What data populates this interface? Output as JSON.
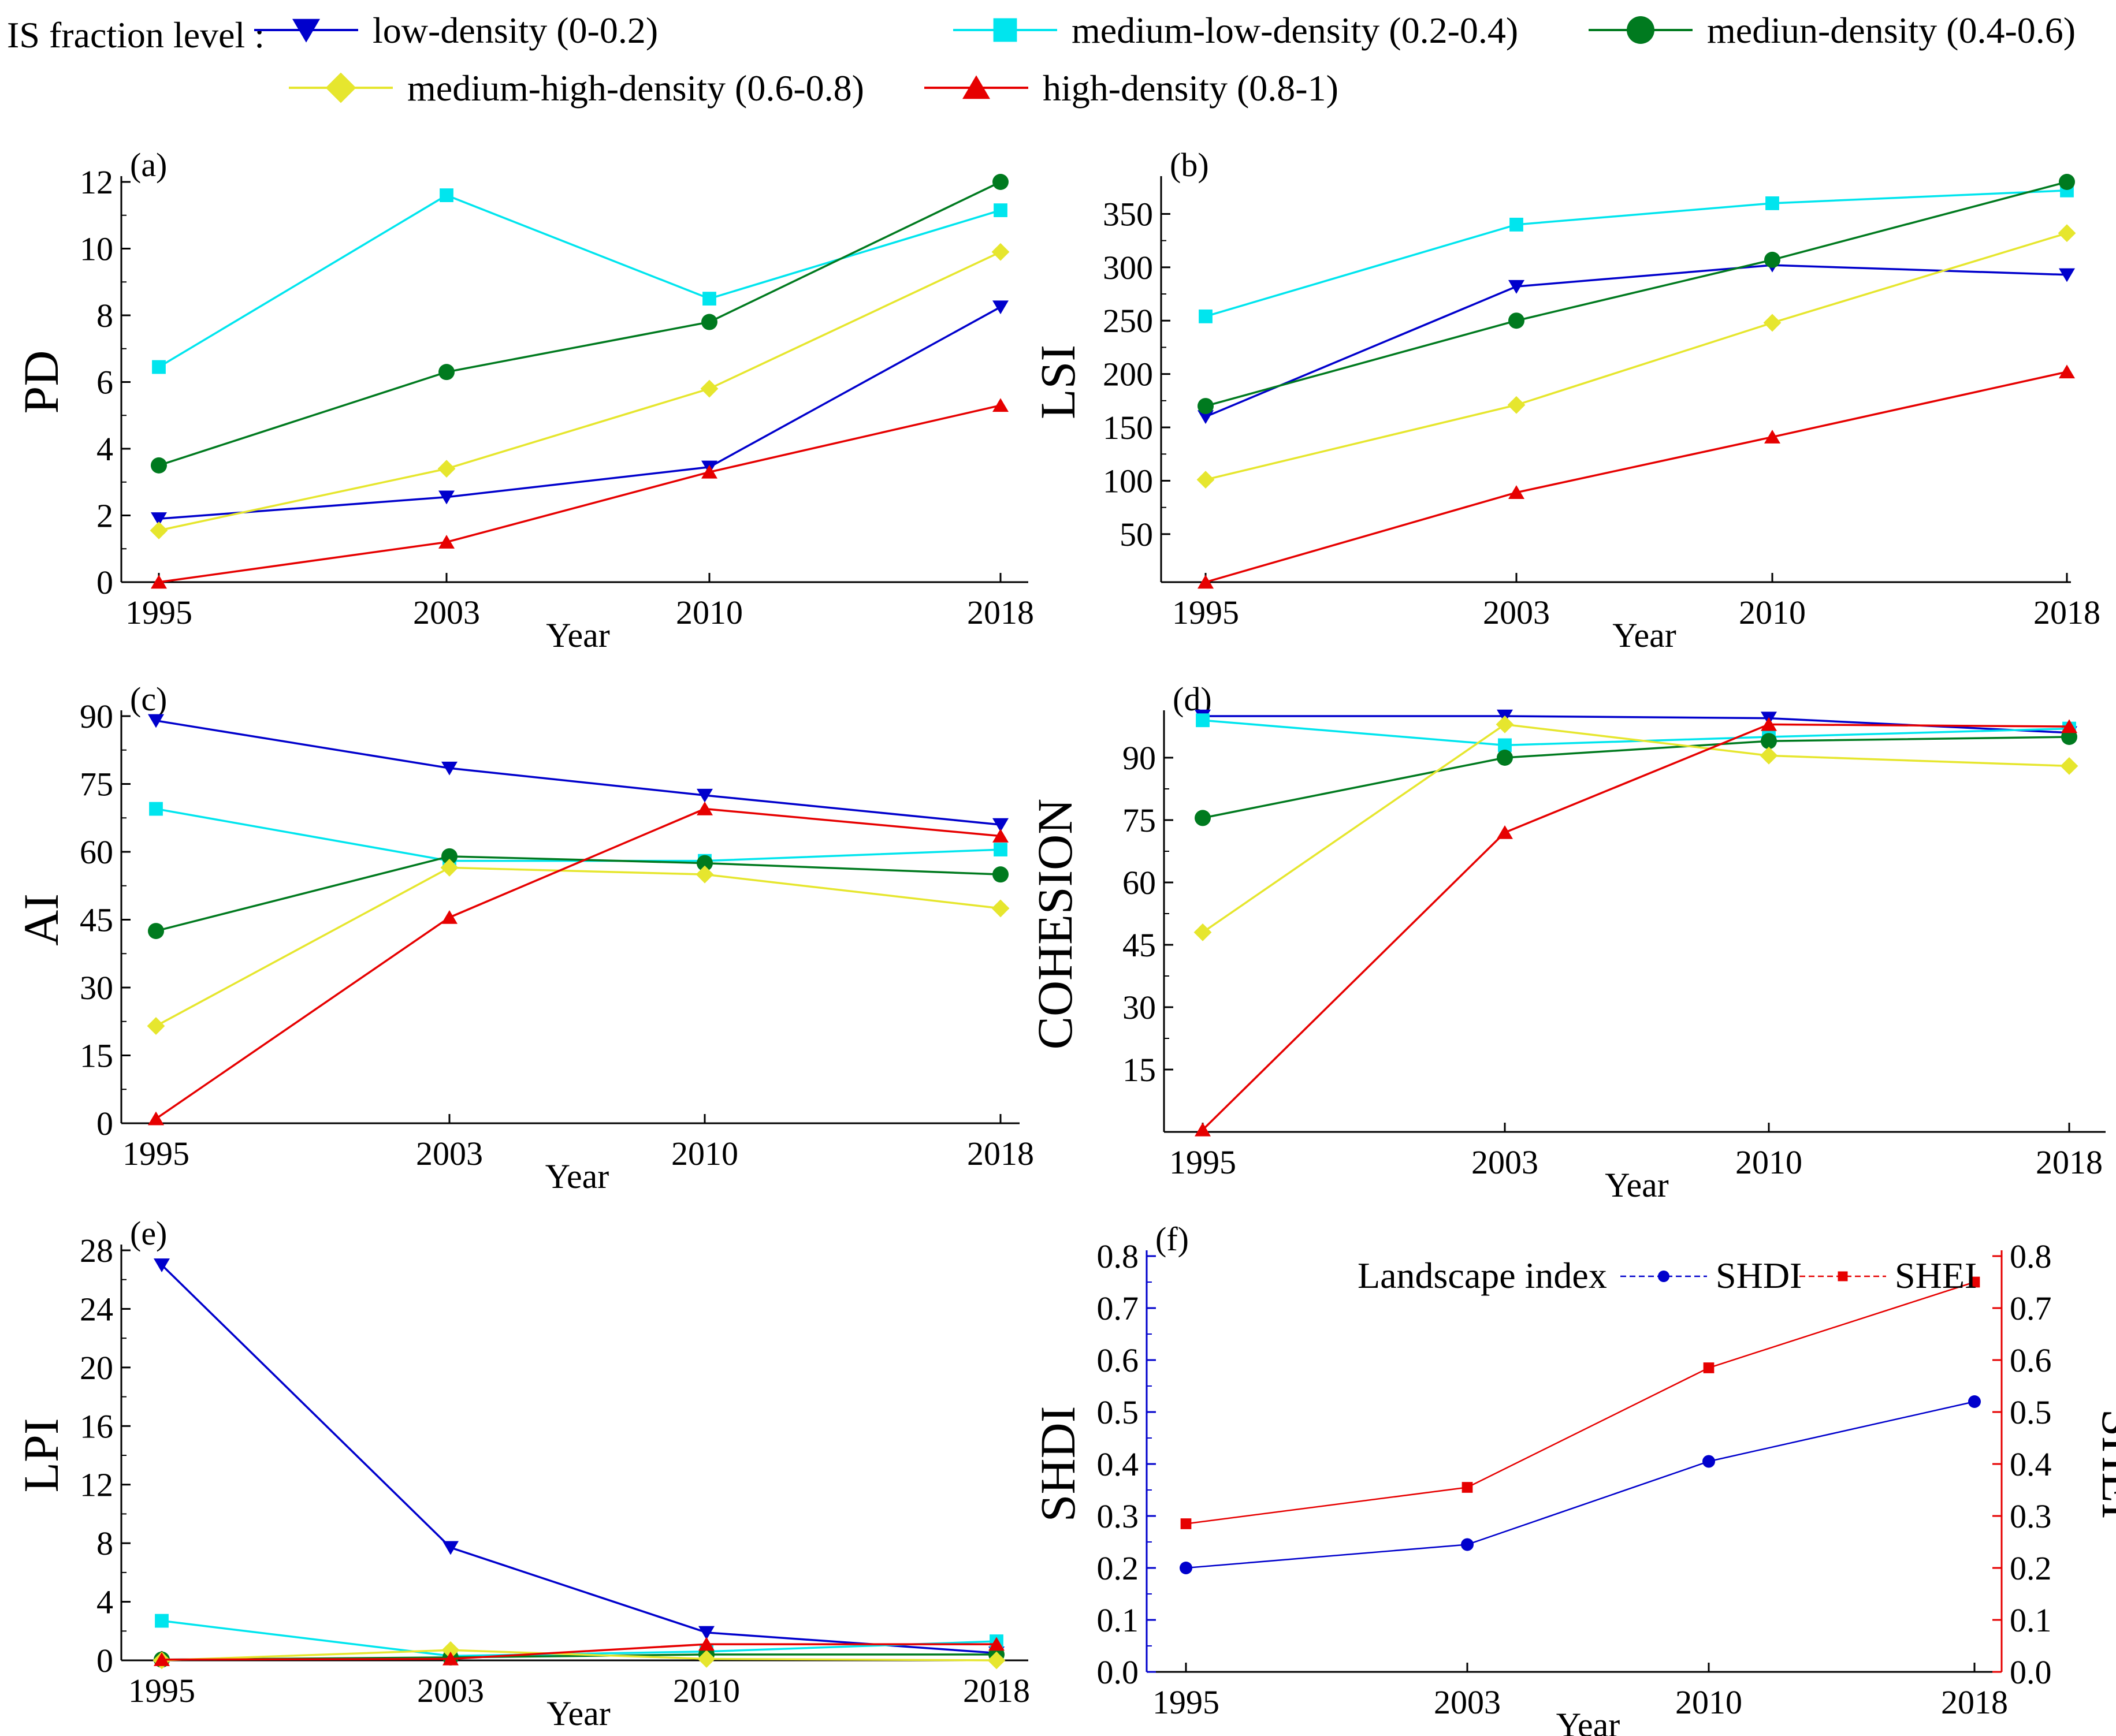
{
  "legend": {
    "title": "IS fraction level :",
    "entries": [
      {
        "label": "low-density  (0-0.2)",
        "color": "#0000CC",
        "marker": "triangle-down"
      },
      {
        "label": "medium-low-density (0.2-0.4)",
        "color": "#00E5EE",
        "marker": "square"
      },
      {
        "label": "mediun-density (0.4-0.6)",
        "color": "#007A1F",
        "marker": "circle"
      },
      {
        "label": "medium-high-density (0.6-0.8)",
        "color": "#E6E62E",
        "marker": "diamond"
      },
      {
        "label": "high-density (0.8-1)",
        "color": "#E60000",
        "marker": "triangle-up"
      }
    ]
  },
  "chart_data": [
    {
      "type": "line",
      "panel": "(a)",
      "xlabel": "Year",
      "ylabel": "PD",
      "categories": [
        "1995",
        "2003",
        "2010",
        "2018"
      ],
      "ylim": [
        0,
        12
      ],
      "yticks": [
        0,
        2,
        4,
        6,
        8,
        10,
        12
      ],
      "series": [
        {
          "name": "low-density  (0-0.2)",
          "values": [
            1.9,
            2.55,
            3.45,
            8.25
          ]
        },
        {
          "name": "medium-low-density (0.2-0.4)",
          "values": [
            6.45,
            11.6,
            8.5,
            11.15
          ]
        },
        {
          "name": "mediun-density (0.4-0.6)",
          "values": [
            3.5,
            6.3,
            7.8,
            12.0
          ]
        },
        {
          "name": "medium-high-density (0.6-0.8)",
          "values": [
            1.55,
            3.4,
            5.8,
            9.9
          ]
        },
        {
          "name": "high-density (0.8-1)",
          "values": [
            0.0,
            1.2,
            3.3,
            5.3
          ]
        }
      ]
    },
    {
      "type": "line",
      "panel": "(b)",
      "xlabel": "Year",
      "ylabel": "LSI",
      "categories": [
        "1995",
        "2003",
        "2010",
        "2018"
      ],
      "ylim": [
        5,
        380
      ],
      "yticks": [
        50,
        100,
        150,
        200,
        250,
        300,
        350
      ],
      "series": [
        {
          "name": "low-density  (0-0.2)",
          "values": [
            160,
            282,
            302,
            293
          ]
        },
        {
          "name": "medium-low-density (0.2-0.4)",
          "values": [
            254,
            340,
            360,
            372
          ]
        },
        {
          "name": "mediun-density (0.4-0.6)",
          "values": [
            170,
            250,
            307,
            380
          ]
        },
        {
          "name": "medium-high-density (0.6-0.8)",
          "values": [
            101,
            171,
            248,
            332
          ]
        },
        {
          "name": "high-density (0.8-1)",
          "values": [
            5,
            89,
            141,
            202
          ]
        }
      ]
    },
    {
      "type": "line",
      "panel": "(c)",
      "xlabel": "Year",
      "ylabel": "AI",
      "categories": [
        "1995",
        "2003",
        "2010",
        "2018"
      ],
      "ylim": [
        0,
        90
      ],
      "yticks": [
        0,
        15,
        30,
        45,
        60,
        75,
        90
      ],
      "series": [
        {
          "name": "low-density  (0-0.2)",
          "values": [
            89,
            78.5,
            72.5,
            66
          ]
        },
        {
          "name": "medium-low-density (0.2-0.4)",
          "values": [
            69.5,
            58,
            58,
            60.5
          ]
        },
        {
          "name": "mediun-density (0.4-0.6)",
          "values": [
            42.5,
            59,
            57.5,
            55
          ]
        },
        {
          "name": "medium-high-density (0.6-0.8)",
          "values": [
            21.5,
            56.5,
            55,
            47.5
          ]
        },
        {
          "name": "high-density (0.8-1)",
          "values": [
            1,
            45.5,
            69.5,
            63.5
          ]
        }
      ]
    },
    {
      "type": "line",
      "panel": "(d)",
      "xlabel": "Year",
      "ylabel": "COHESION",
      "categories": [
        "1995",
        "2003",
        "2010",
        "2018"
      ],
      "ylim": [
        0,
        100
      ],
      "yticks": [
        15,
        30,
        45,
        60,
        75,
        90
      ],
      "series": [
        {
          "name": "low-density  (0-0.2)",
          "values": [
            100,
            100,
            99.5,
            96
          ]
        },
        {
          "name": "medium-low-density (0.2-0.4)",
          "values": [
            99,
            93,
            95,
            97
          ]
        },
        {
          "name": "mediun-density (0.4-0.6)",
          "values": [
            75.5,
            90,
            94,
            95
          ]
        },
        {
          "name": "medium-high-density (0.6-0.8)",
          "values": [
            48,
            98,
            90.5,
            88
          ]
        },
        {
          "name": "high-density (0.8-1)",
          "values": [
            0.5,
            72,
            98,
            97.5
          ]
        }
      ]
    },
    {
      "type": "line",
      "panel": "(e)",
      "xlabel": "Year",
      "ylabel": "LPI",
      "categories": [
        "1995",
        "2003",
        "2010",
        "2018"
      ],
      "ylim": [
        0,
        28
      ],
      "yticks": [
        0,
        4,
        8,
        12,
        16,
        20,
        24,
        28
      ],
      "series": [
        {
          "name": "low-density  (0-0.2)",
          "values": [
            27,
            7.7,
            1.9,
            0.5
          ]
        },
        {
          "name": "medium-low-density (0.2-0.4)",
          "values": [
            2.7,
            0.3,
            0.6,
            1.3
          ]
        },
        {
          "name": "mediun-density (0.4-0.6)",
          "values": [
            0.05,
            0.2,
            0.4,
            0.4
          ]
        },
        {
          "name": "medium-high-density (0.6-0.8)",
          "values": [
            0.0,
            0.7,
            0.1,
            0.0
          ]
        },
        {
          "name": "high-density (0.8-1)",
          "values": [
            0.05,
            0.1,
            1.1,
            1.1
          ]
        }
      ]
    },
    {
      "type": "line",
      "panel": "(f)",
      "xlabel": "Year",
      "ylabel": "SHDI",
      "ylabel_right": "SHEI",
      "categories": [
        "1995",
        "2003",
        "2010",
        "2018"
      ],
      "ylim": [
        0,
        0.8
      ],
      "yticks": [
        0.0,
        0.1,
        0.2,
        0.3,
        0.4,
        0.5,
        0.6,
        0.7,
        0.8
      ],
      "ylim_right": [
        0,
        0.8
      ],
      "yticks_right": [
        0.0,
        0.1,
        0.2,
        0.3,
        0.4,
        0.5,
        0.6,
        0.7,
        0.8
      ],
      "legend_title": "Landscape index",
      "left_color": "#0000CC",
      "right_color": "#E60000",
      "series": [
        {
          "name": "SHDI",
          "axis": "left",
          "color": "#0000CC",
          "marker": "circle",
          "values": [
            0.2,
            0.245,
            0.405,
            0.52
          ]
        },
        {
          "name": "SHEI",
          "axis": "right",
          "color": "#E60000",
          "marker": "square",
          "values": [
            0.285,
            0.355,
            0.585,
            0.75
          ]
        }
      ]
    }
  ]
}
